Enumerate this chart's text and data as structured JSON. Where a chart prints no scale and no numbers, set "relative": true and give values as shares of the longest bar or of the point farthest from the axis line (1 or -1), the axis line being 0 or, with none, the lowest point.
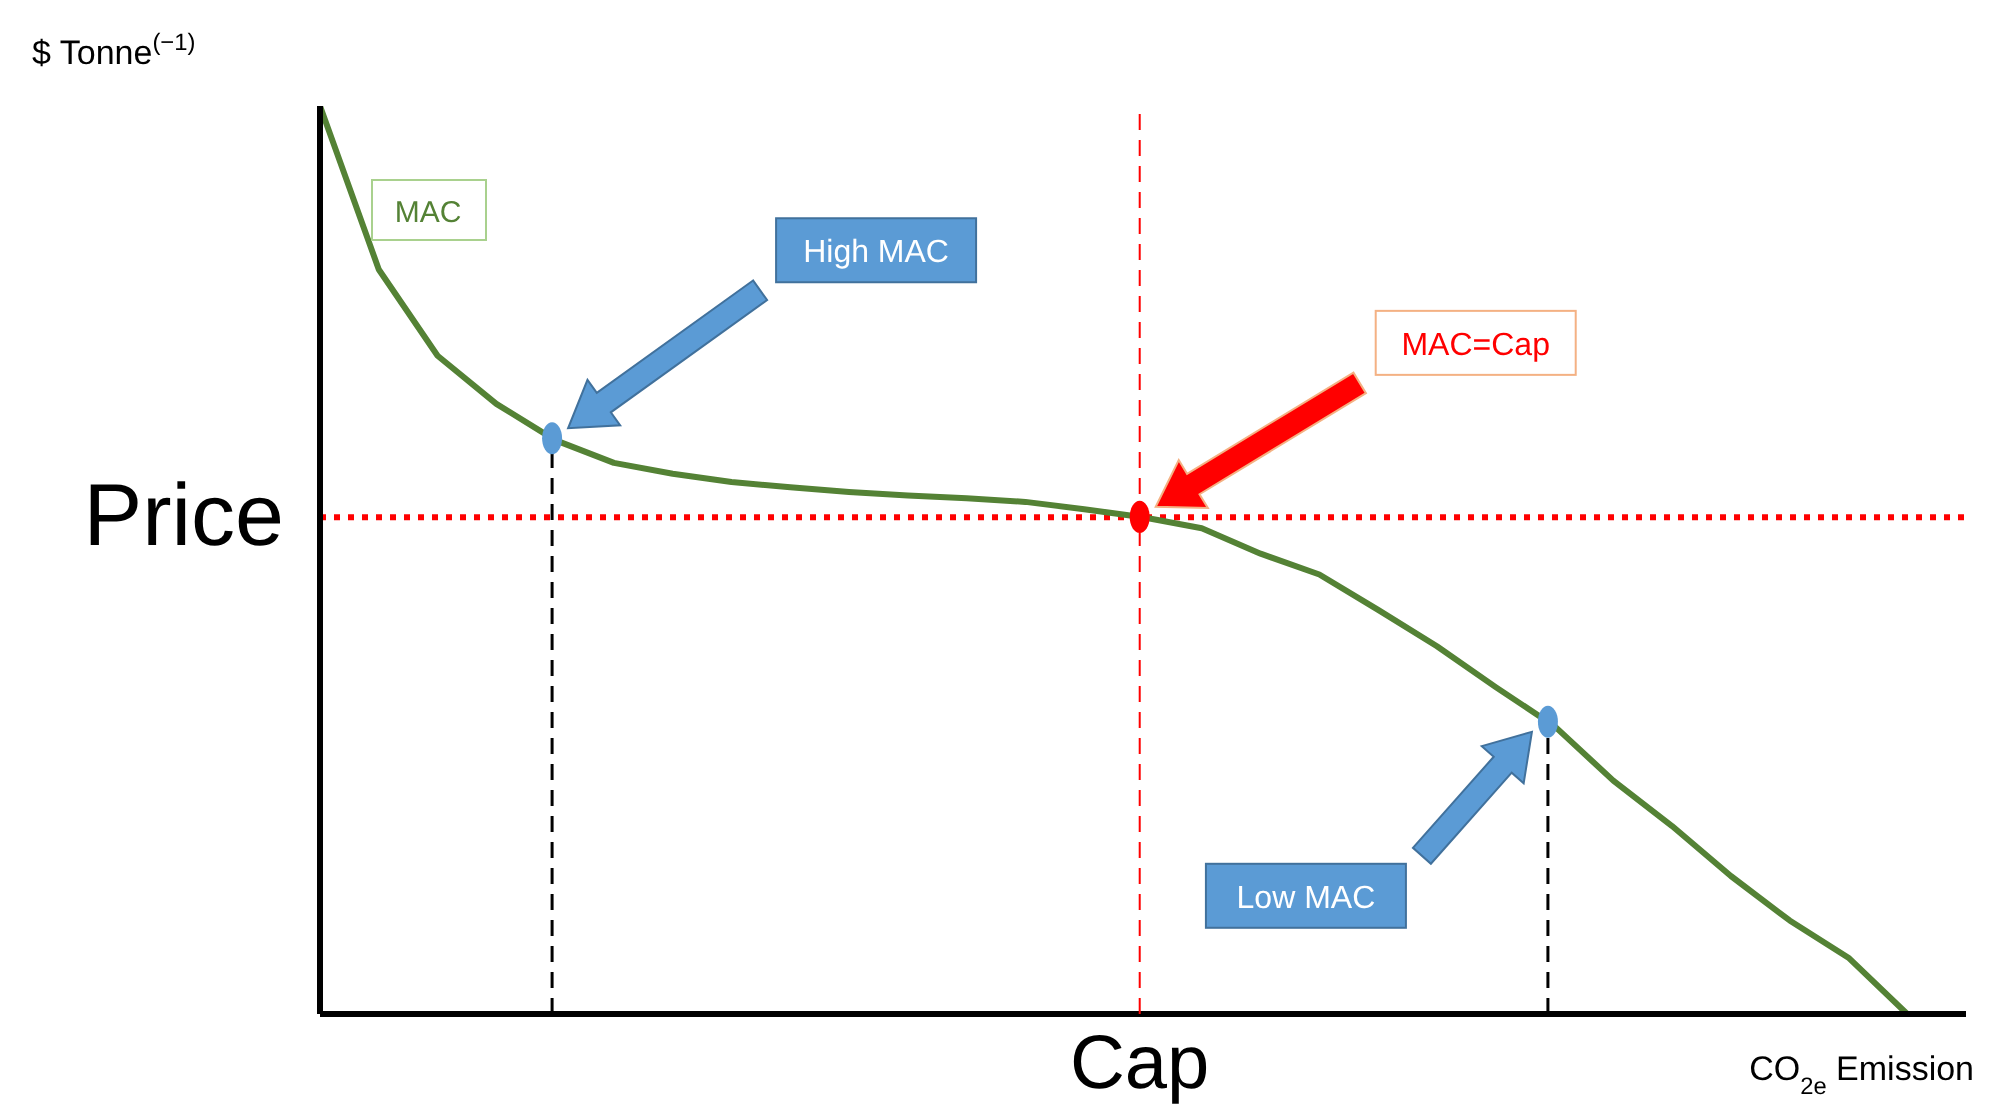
{
  "chart_data": {
    "type": "line",
    "relative": true,
    "xlabel": "CO$_{2e}$ Emission",
    "ylabel": "$ Tonne$^{(−1)}$",
    "grid": false,
    "legend": false,
    "marker": "none",
    "line_style": "solid",
    "categories": [
      null,
      null,
      null,
      null,
      null,
      null,
      null,
      null,
      null,
      null,
      null,
      null,
      null,
      null,
      null,
      null,
      null,
      null,
      null,
      null,
      null,
      null,
      null,
      null,
      null,
      null,
      null,
      null,
      null
    ],
    "series": [
      {
        "name": "MAC",
        "color": "#548235",
        "values": [
          1,
          0.82,
          0.725,
          0.672,
          0.632,
          0.607,
          0.595,
          0.586,
          0.58,
          0.575,
          0.571,
          0.568,
          0.564,
          0.556,
          0.547,
          0.535,
          0.507,
          0.484,
          0.445,
          0.405,
          0.36,
          0.317,
          0.257,
          0.207,
          0.152,
          0.103,
          0.062,
          0,
          null
        ]
      }
    ],
    "ref_lines": [
      {
        "axis": "y",
        "value": 0.547,
        "label": "Price",
        "color": "#ff0000",
        "line_style": "dotted"
      }
    ],
    "annotations": [
      "High MAC",
      "MAC=Cap",
      "Low MAC",
      "Cap"
    ]
  }
}
